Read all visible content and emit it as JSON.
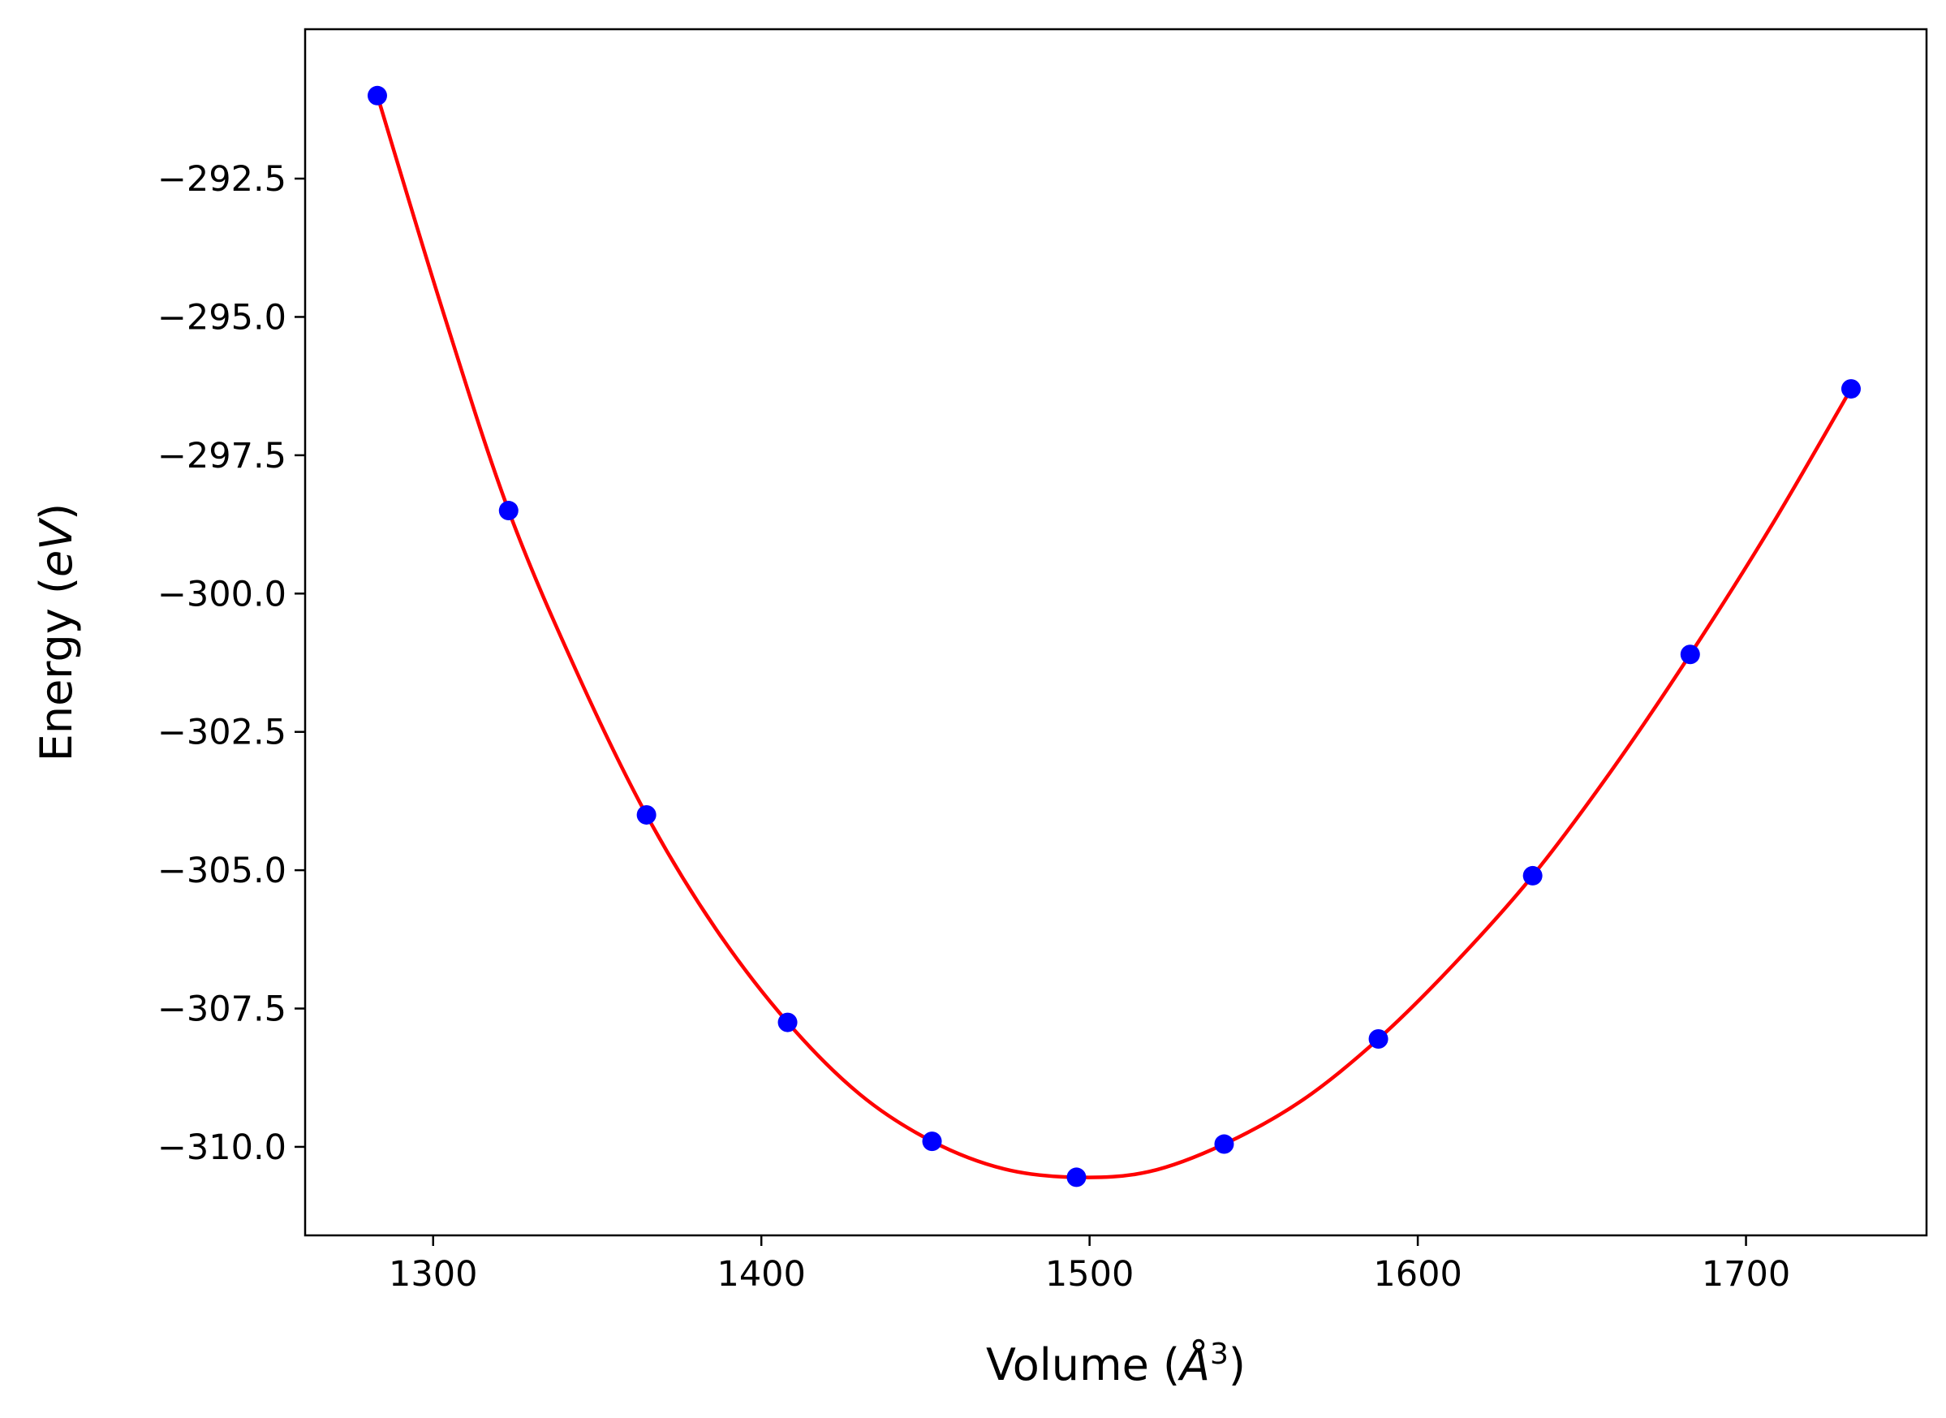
{
  "chart_data": {
    "type": "line",
    "title": "",
    "xlabel": {
      "text": "Volume (",
      "symbol": "Å",
      "superscript": "3",
      "close": ")"
    },
    "ylabel": {
      "text": "Energy (",
      "symbol": "eV",
      "close": ")"
    },
    "xlim": [
      1261,
      1755
    ],
    "ylim": [
      -311.6,
      -289.8
    ],
    "x_ticks": [
      1300,
      1400,
      1500,
      1600,
      1700
    ],
    "x_tick_labels": [
      "1300",
      "1400",
      "1500",
      "1600",
      "1700"
    ],
    "y_ticks": [
      -292.5,
      -295.0,
      -297.5,
      -300.0,
      -302.5,
      -305.0,
      -307.5,
      -310.0
    ],
    "y_tick_labels": [
      "−292.5",
      "−295.0",
      "−297.5",
      "−300.0",
      "−302.5",
      "−305.0",
      "−307.5",
      "−310.0"
    ],
    "grid": false,
    "series": [
      {
        "kind": "points",
        "color": "#0000ff",
        "x": [
          1283,
          1323,
          1365,
          1408,
          1452,
          1496,
          1541,
          1588,
          1635,
          1683,
          1732
        ],
        "y": [
          -291.0,
          -298.5,
          -304.0,
          -307.75,
          -309.9,
          -310.55,
          -309.95,
          -308.05,
          -305.1,
          -301.1,
          -296.3
        ]
      },
      {
        "kind": "fit-curve",
        "color": "#ff0000",
        "x": [
          1283,
          1303,
          1323,
          1344,
          1365,
          1386,
          1408,
          1430,
          1452,
          1474,
          1496,
          1518,
          1541,
          1565,
          1588,
          1611,
          1635,
          1659,
          1683,
          1708,
          1732
        ],
        "y": [
          -291.0,
          -294.9,
          -298.5,
          -301.45,
          -304.0,
          -306.05,
          -307.75,
          -309.05,
          -309.9,
          -310.4,
          -310.55,
          -310.45,
          -309.95,
          -309.15,
          -308.05,
          -306.7,
          -305.1,
          -303.2,
          -301.1,
          -298.75,
          -296.3
        ]
      }
    ]
  }
}
